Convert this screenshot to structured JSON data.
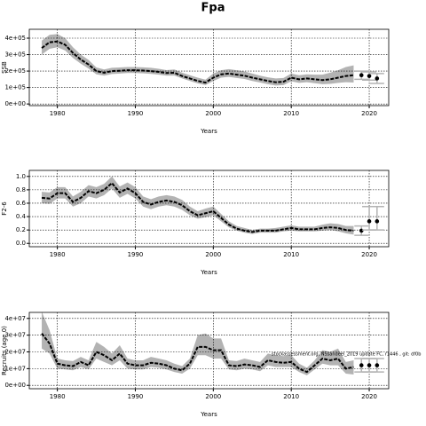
{
  "title": "Fpa",
  "chart_data": [
    {
      "type": "line",
      "ylabel": "SSB",
      "xlabel": "Years",
      "color": "#000000",
      "band_color": "#b3b3b3",
      "grid": true,
      "x": [
        1978,
        1979,
        1980,
        1981,
        1982,
        1983,
        1984,
        1985,
        1986,
        1987,
        1988,
        1989,
        1990,
        1991,
        1992,
        1993,
        1994,
        1995,
        1996,
        1997,
        1998,
        1999,
        2000,
        2001,
        2002,
        2003,
        2004,
        2005,
        2006,
        2007,
        2008,
        2009,
        2010,
        2011,
        2012,
        2013,
        2014,
        2015,
        2016,
        2017,
        2018
      ],
      "values": [
        340000,
        375000,
        380000,
        360000,
        310000,
        270000,
        240000,
        200000,
        190000,
        200000,
        202000,
        205000,
        205000,
        203000,
        200000,
        195000,
        188000,
        190000,
        170000,
        155000,
        140000,
        130000,
        160000,
        180000,
        185000,
        178000,
        172000,
        160000,
        150000,
        140000,
        132000,
        135000,
        160000,
        150000,
        155000,
        150000,
        145000,
        150000,
        160000,
        170000,
        175000
      ],
      "lower": [
        300000,
        335000,
        345000,
        325000,
        280000,
        245000,
        215000,
        180000,
        172000,
        182000,
        185000,
        188000,
        188000,
        186000,
        183000,
        178000,
        172000,
        173000,
        155000,
        140000,
        125000,
        115000,
        140000,
        160000,
        165000,
        158000,
        152000,
        140000,
        130000,
        120000,
        112000,
        115000,
        138000,
        128000,
        132000,
        126000,
        120000,
        122000,
        128000,
        132000,
        130000
      ],
      "upper": [
        385000,
        420000,
        425000,
        400000,
        345000,
        300000,
        268000,
        222000,
        210000,
        220000,
        222000,
        225000,
        225000,
        223000,
        220000,
        214000,
        206000,
        210000,
        190000,
        175000,
        160000,
        148000,
        185000,
        205000,
        212000,
        205000,
        198000,
        185000,
        172000,
        162000,
        155000,
        158000,
        185000,
        175000,
        180000,
        178000,
        178000,
        190000,
        205000,
        225000,
        235000
      ],
      "points": {
        "x": [
          2019,
          2020,
          2021
        ],
        "values": [
          175000,
          170000,
          155000
        ],
        "lower": [
          150000,
          145000,
          125000
        ],
        "upper": [
          200000,
          195000,
          185000
        ]
      },
      "xlim": [
        1976.4,
        2022.5
      ],
      "xticks": [
        1980,
        1990,
        2000,
        2010,
        2020
      ],
      "ylim": [
        -10000,
        454000
      ],
      "yticks": [
        {
          "value": 0,
          "label": "0e+00"
        },
        {
          "value": 100000,
          "label": "1e+05"
        },
        {
          "value": 200000,
          "label": "2e+05"
        },
        {
          "value": 300000,
          "label": "3e+05"
        },
        {
          "value": 400000,
          "label": "4e+05"
        }
      ]
    },
    {
      "type": "line",
      "ylabel": "F2-6",
      "xlabel": "Years",
      "color": "#000000",
      "band_color": "#b3b3b3",
      "grid": true,
      "x": [
        1978,
        1979,
        1980,
        1981,
        1982,
        1983,
        1984,
        1985,
        1986,
        1987,
        1988,
        1989,
        1990,
        1991,
        1992,
        1993,
        1994,
        1995,
        1996,
        1997,
        1998,
        1999,
        2000,
        2001,
        2002,
        2003,
        2004,
        2005,
        2006,
        2007,
        2008,
        2009,
        2010,
        2011,
        2012,
        2013,
        2014,
        2015,
        2016,
        2017,
        2018
      ],
      "values": [
        0.68,
        0.67,
        0.75,
        0.75,
        0.62,
        0.68,
        0.78,
        0.75,
        0.8,
        0.9,
        0.76,
        0.82,
        0.75,
        0.62,
        0.58,
        0.62,
        0.64,
        0.62,
        0.57,
        0.48,
        0.42,
        0.45,
        0.48,
        0.38,
        0.28,
        0.22,
        0.19,
        0.17,
        0.19,
        0.19,
        0.19,
        0.21,
        0.23,
        0.21,
        0.21,
        0.21,
        0.23,
        0.24,
        0.23,
        0.2,
        0.19
      ],
      "lower": [
        0.6,
        0.59,
        0.67,
        0.67,
        0.55,
        0.6,
        0.7,
        0.67,
        0.72,
        0.82,
        0.68,
        0.74,
        0.67,
        0.55,
        0.51,
        0.55,
        0.57,
        0.55,
        0.5,
        0.42,
        0.37,
        0.39,
        0.42,
        0.33,
        0.24,
        0.19,
        0.16,
        0.14,
        0.16,
        0.16,
        0.16,
        0.18,
        0.19,
        0.18,
        0.18,
        0.18,
        0.19,
        0.2,
        0.18,
        0.15,
        0.13
      ],
      "upper": [
        0.77,
        0.76,
        0.84,
        0.84,
        0.7,
        0.77,
        0.87,
        0.84,
        0.89,
        1.0,
        0.85,
        0.91,
        0.84,
        0.7,
        0.66,
        0.7,
        0.72,
        0.7,
        0.65,
        0.55,
        0.48,
        0.52,
        0.55,
        0.44,
        0.33,
        0.26,
        0.23,
        0.2,
        0.22,
        0.22,
        0.23,
        0.25,
        0.27,
        0.25,
        0.25,
        0.25,
        0.28,
        0.3,
        0.29,
        0.26,
        0.26
      ],
      "points": {
        "x": [
          2019,
          2020,
          2021
        ],
        "values": [
          0.19,
          0.33,
          0.33
        ],
        "lower": [
          0.12,
          0.2,
          0.2
        ],
        "upper": [
          0.26,
          0.55,
          0.55
        ]
      },
      "xlim": [
        1976.4,
        2022.5
      ],
      "xticks": [
        1980,
        1990,
        2000,
        2010,
        2020
      ],
      "ylim": [
        -0.05,
        1.09
      ],
      "yticks": [
        {
          "value": 0,
          "label": "0.0"
        },
        0.2,
        0.4,
        0.6,
        0.8,
        {
          "value": 1,
          "label": "1.0"
        }
      ]
    },
    {
      "type": "line",
      "ylabel": "Recruits (age 0)",
      "xlabel": "Years",
      "color": "#000000",
      "band_color": "#b3b3b3",
      "grid": true,
      "annotation": "stockassessment.org, NSsandeel_2019 update FC, r1446 , git: df0b",
      "x": [
        1978,
        1979,
        1980,
        1981,
        1982,
        1983,
        1984,
        1985,
        1986,
        1987,
        1988,
        1989,
        1990,
        1991,
        1992,
        1993,
        1994,
        1995,
        1996,
        1997,
        1998,
        1999,
        2000,
        2001,
        2002,
        2003,
        2004,
        2005,
        2006,
        2007,
        2008,
        2009,
        2010,
        2011,
        2012,
        2013,
        2014,
        2015,
        2016,
        2017,
        2018
      ],
      "values": [
        31000000,
        25000000,
        13000000,
        12000000,
        11500000,
        14000000,
        12000000,
        20000000,
        18000000,
        15000000,
        19000000,
        13000000,
        12000000,
        12000000,
        13500000,
        13000000,
        12000000,
        10000000,
        9000000,
        13000000,
        23000000,
        23000000,
        21000000,
        21000000,
        12000000,
        11500000,
        12500000,
        12000000,
        11000000,
        15000000,
        14000000,
        13500000,
        14000000,
        10000000,
        8000000,
        12000000,
        16000000,
        15000000,
        16000000,
        10000000,
        11000000
      ],
      "lower": [
        22000000,
        19000000,
        10000000,
        9500000,
        9000000,
        11000000,
        9500000,
        16000000,
        14000000,
        12000000,
        15000000,
        10000000,
        9500000,
        9500000,
        11000000,
        10500000,
        9500000,
        8000000,
        7000000,
        10000000,
        18000000,
        18000000,
        16000000,
        16000000,
        9500000,
        9000000,
        10000000,
        9500000,
        8500000,
        12000000,
        11000000,
        11000000,
        11000000,
        8000000,
        6000000,
        9500000,
        13000000,
        12000000,
        12000000,
        7000000,
        6500000
      ],
      "upper": [
        44000000,
        33000000,
        16000000,
        15000000,
        14500000,
        17000000,
        15000000,
        26000000,
        23000000,
        19000000,
        24000000,
        16000000,
        15000000,
        15000000,
        17000000,
        16000000,
        15000000,
        13000000,
        11500000,
        16000000,
        30000000,
        31000000,
        28000000,
        28000000,
        15000000,
        14500000,
        16000000,
        15000000,
        14000000,
        19000000,
        18000000,
        17500000,
        18000000,
        13000000,
        10500000,
        15000000,
        21000000,
        20000000,
        22000000,
        14000000,
        15000000
      ],
      "points": {
        "x": [
          2019,
          2020,
          2021
        ],
        "values": [
          12000000,
          12000000,
          12000000
        ],
        "lower": [
          8000000,
          8000000,
          8000000
        ],
        "upper": [
          16000000,
          16000000,
          16000000
        ]
      },
      "xlim": [
        1976.4,
        2022.5
      ],
      "xticks": [
        1980,
        1990,
        2000,
        2010,
        2020
      ],
      "ylim": [
        -2000000,
        43600000
      ],
      "yticks": [
        {
          "value": 0,
          "label": "0e+00"
        },
        {
          "value": 10000000,
          "label": "1e+07"
        },
        {
          "value": 20000000,
          "label": "2e+07"
        },
        {
          "value": 30000000,
          "label": "3e+07"
        },
        {
          "value": 40000000,
          "label": "4e+07"
        }
      ]
    }
  ]
}
